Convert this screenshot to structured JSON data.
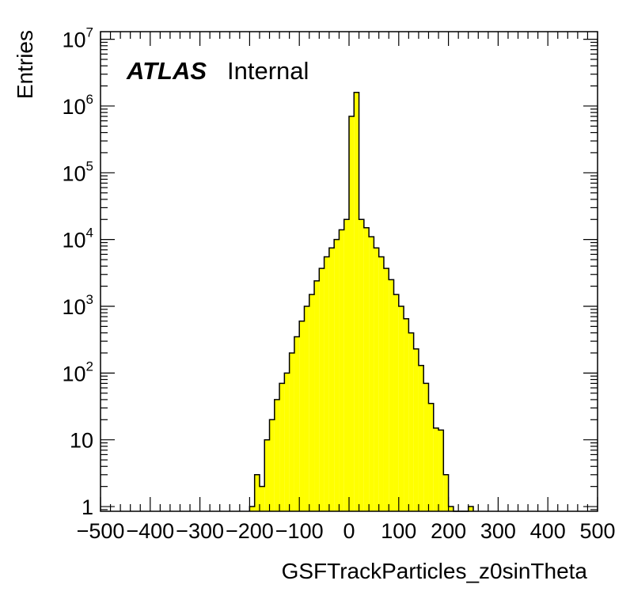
{
  "chart_data": {
    "type": "bar",
    "histogram": true,
    "label_main": "ATLAS",
    "label_sub": "Internal",
    "xlabel": "GSFTrackParticles_z0sinTheta",
    "ylabel": "Entries",
    "xlim": [
      -500,
      500
    ],
    "ylim": [
      0.85,
      13000000
    ],
    "yscale": "log",
    "fill_color": "#ffff00",
    "line_color": "#000000",
    "x_ticks": [
      -500,
      -400,
      -300,
      -200,
      -100,
      0,
      100,
      200,
      300,
      400,
      500
    ],
    "x_tick_labels": [
      "−500",
      "−400",
      "−300",
      "−200",
      "−100",
      "0",
      "100",
      "200",
      "300",
      "400",
      "500"
    ],
    "y_ticks": [
      {
        "value": 1,
        "base": "1",
        "exp": ""
      },
      {
        "value": 10,
        "base": "10",
        "exp": ""
      },
      {
        "value": 100,
        "base": "10",
        "exp": "2"
      },
      {
        "value": 1000,
        "base": "10",
        "exp": "3"
      },
      {
        "value": 10000,
        "base": "10",
        "exp": "4"
      },
      {
        "value": 100000,
        "base": "10",
        "exp": "5"
      },
      {
        "value": 1000000,
        "base": "10",
        "exp": "6"
      },
      {
        "value": 10000000,
        "base": "10",
        "exp": "7"
      }
    ],
    "bin_width": 10,
    "bins": [
      {
        "x_low": -200,
        "value": 1
      },
      {
        "x_low": -190,
        "value": 3
      },
      {
        "x_low": -180,
        "value": 2
      },
      {
        "x_low": -170,
        "value": 10
      },
      {
        "x_low": -160,
        "value": 20
      },
      {
        "x_low": -150,
        "value": 40
      },
      {
        "x_low": -140,
        "value": 70
      },
      {
        "x_low": -130,
        "value": 100
      },
      {
        "x_low": -120,
        "value": 200
      },
      {
        "x_low": -110,
        "value": 350
      },
      {
        "x_low": -100,
        "value": 600
      },
      {
        "x_low": -90,
        "value": 1000
      },
      {
        "x_low": -80,
        "value": 1500
      },
      {
        "x_low": -70,
        "value": 2400
      },
      {
        "x_low": -60,
        "value": 3700
      },
      {
        "x_low": -50,
        "value": 5500
      },
      {
        "x_low": -40,
        "value": 7500
      },
      {
        "x_low": -30,
        "value": 10000
      },
      {
        "x_low": -20,
        "value": 14000
      },
      {
        "x_low": -10,
        "value": 20000
      },
      {
        "x_low": 0,
        "value": 700000
      },
      {
        "x_low": 10,
        "value": 1600000
      },
      {
        "x_low": 20,
        "value": 20000
      },
      {
        "x_low": 30,
        "value": 15000
      },
      {
        "x_low": 40,
        "value": 11000
      },
      {
        "x_low": 50,
        "value": 7500
      },
      {
        "x_low": 60,
        "value": 5500
      },
      {
        "x_low": 70,
        "value": 3700
      },
      {
        "x_low": 80,
        "value": 2500
      },
      {
        "x_low": 90,
        "value": 1500
      },
      {
        "x_low": 100,
        "value": 1000
      },
      {
        "x_low": 110,
        "value": 650
      },
      {
        "x_low": 120,
        "value": 400
      },
      {
        "x_low": 130,
        "value": 230
      },
      {
        "x_low": 140,
        "value": 130
      },
      {
        "x_low": 150,
        "value": 70
      },
      {
        "x_low": 160,
        "value": 35
      },
      {
        "x_low": 170,
        "value": 15
      },
      {
        "x_low": 180,
        "value": 14
      },
      {
        "x_low": 190,
        "value": 3
      },
      {
        "x_low": 200,
        "value": 1
      },
      {
        "x_low": 210,
        "value": 0
      },
      {
        "x_low": 220,
        "value": 0
      },
      {
        "x_low": 230,
        "value": 0
      },
      {
        "x_low": 240,
        "value": 1
      }
    ]
  }
}
